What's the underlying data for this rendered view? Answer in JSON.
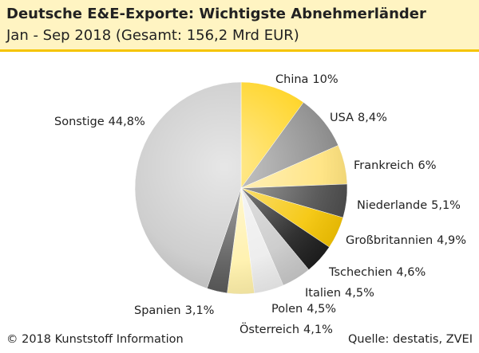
{
  "chart_data": {
    "type": "pie",
    "title": "Deutsche E&E-Exporte: Wichtigste Abnehmerländer",
    "subtitle": "Jan - Sep 2018 (Gesamt: 156,2 Mrd EUR)",
    "categories": [
      "China",
      "USA",
      "Frankreich",
      "Niederlande",
      "Großbritannien",
      "Tschechien",
      "Italien",
      "Polen",
      "Österreich",
      "Spanien",
      "Sonstige"
    ],
    "values": [
      10,
      8.4,
      6,
      5.1,
      4.9,
      4.6,
      4.5,
      4.5,
      4.1,
      3.1,
      44.8
    ],
    "value_labels": [
      "10%",
      "8,4%",
      "6%",
      "5,1%",
      "4,9%",
      "4,6%",
      "4,5%",
      "4,5%",
      "4,1%",
      "3,1%",
      "44,8%"
    ],
    "colors": [
      "#ffd21a",
      "#8a8a8a",
      "#ffe27a",
      "#4a4a4a",
      "#f5c400",
      "#1c1c1c",
      "#c8c8c8",
      "#ececec",
      "#fff0a8",
      "#555555",
      "#c9c9c9"
    ],
    "credit": "© 2018 Kunststoff Information",
    "source": "Quelle: destatis, ZVEI"
  }
}
